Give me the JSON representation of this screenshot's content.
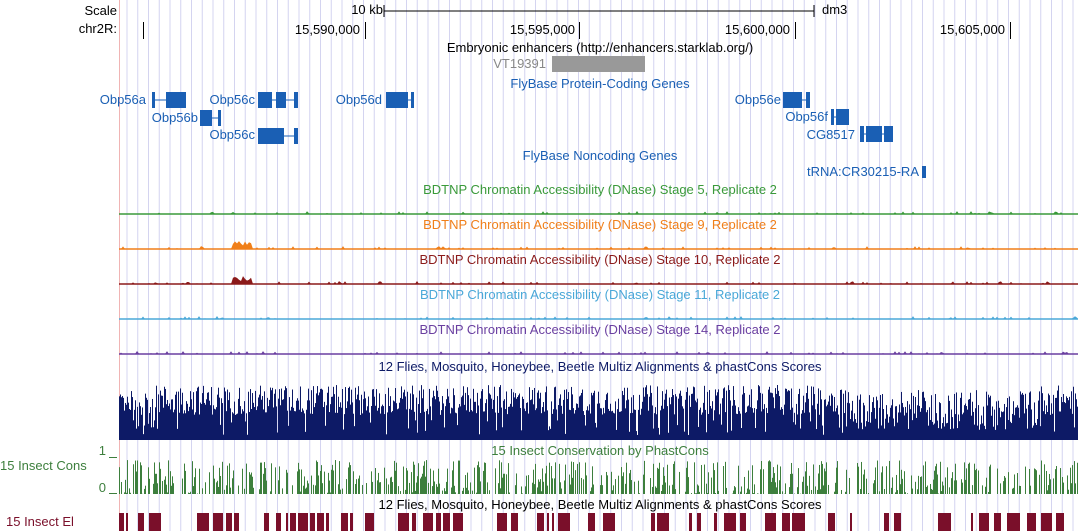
{
  "scale": {
    "label": "Scale",
    "bar_text": "10 kb",
    "assembly": "dm3"
  },
  "ruler": {
    "chrom": "chr2R:",
    "ticks": [
      "15,590,000",
      "15,595,000",
      "15,600,000",
      "15,605,000"
    ]
  },
  "tracks": {
    "enhancers": {
      "title": "Embryonic enhancers (http://enhancers.starklab.org/)",
      "item": "VT19391"
    },
    "coding": {
      "title": "FlyBase Protein-Coding Genes",
      "genes": [
        "Obp56a",
        "Obp56b",
        "Obp56c",
        "Obp56c",
        "Obp56d",
        "Obp56e",
        "Obp56f",
        "CG8517"
      ]
    },
    "noncoding": {
      "title": "FlyBase Noncoding Genes",
      "genes": [
        "tRNA:CR30215-RA"
      ]
    },
    "dnase": [
      {
        "title": "BDTNP Chromatin Accessibility (DNase) Stage 5, Replicate 2",
        "color": "#3a9a3a"
      },
      {
        "title": "BDTNP Chromatin Accessibility (DNase) Stage 9, Replicate 2",
        "color": "#f07f19"
      },
      {
        "title": "BDTNP Chromatin Accessibility (DNase) Stage 10, Replicate 2",
        "color": "#8b1a1a"
      },
      {
        "title": "BDTNP Chromatin Accessibility (DNase) Stage 11, Replicate 2",
        "color": "#4aa8d8"
      },
      {
        "title": "BDTNP Chromatin Accessibility (DNase) Stage 14, Replicate 2",
        "color": "#6a3fa0"
      }
    ],
    "multiz": {
      "title": "12 Flies, Mosquito, Honeybee, Beetle Multiz Alignments & phastCons Scores",
      "color": "#0d1a66"
    },
    "phastcons": {
      "title": "15 Insect Conservation by PhastCons",
      "side_label": "15 Insect Cons",
      "y_max": "1",
      "y_min": "0",
      "color": "#3d7f3d"
    },
    "elements": {
      "title": "12 Flies, Mosquito, Honeybee, Beetle Multiz Alignments & phastCons Scores",
      "side_label": "15 Insect El",
      "color": "#7a0f2a"
    }
  },
  "colors": {
    "gene": "#1a5fb4",
    "grid": "#d4d4f0",
    "left_border": "#f0b4b4"
  }
}
